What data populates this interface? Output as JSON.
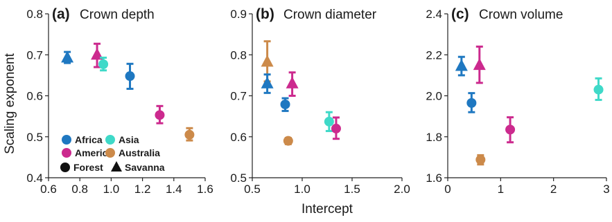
{
  "figure": {
    "ylabel": "Scaling exponent",
    "xlabel": "Intercept"
  },
  "legend": {
    "items": [
      {
        "label": "Africa",
        "color": "#1f78c1",
        "shape": "circle"
      },
      {
        "label": "Asia",
        "color": "#3fd9c8",
        "shape": "circle"
      },
      {
        "label": "America",
        "color": "#cc2a8e",
        "shape": "circle"
      },
      {
        "label": "Australia",
        "color": "#cc8a4a",
        "shape": "circle"
      },
      {
        "label": "Forest",
        "color": "#111111",
        "shape": "circle"
      },
      {
        "label": "Savanna",
        "color": "#111111",
        "shape": "triangle"
      }
    ]
  },
  "chart_data": [
    {
      "type": "scatter",
      "panel": "(a)",
      "title": "Crown depth",
      "xlim": [
        0.6,
        1.6
      ],
      "ylim": [
        0.4,
        0.8
      ],
      "xticks": [
        "0.6",
        "0.8",
        "1.0",
        "1.2",
        "1.4",
        "1.6"
      ],
      "yticks": [
        "0.4",
        "0.5",
        "0.6",
        "0.7",
        "0.8"
      ],
      "points": [
        {
          "region": "Africa",
          "biome": "Savanna",
          "x": 0.72,
          "y": 0.693,
          "lo": 0.68,
          "hi": 0.707
        },
        {
          "region": "America",
          "biome": "Savanna",
          "x": 0.91,
          "y": 0.7,
          "lo": 0.67,
          "hi": 0.727
        },
        {
          "region": "Asia",
          "biome": "Forest",
          "x": 0.95,
          "y": 0.677,
          "lo": 0.662,
          "hi": 0.693
        },
        {
          "region": "Africa",
          "biome": "Forest",
          "x": 1.12,
          "y": 0.648,
          "lo": 0.617,
          "hi": 0.678
        },
        {
          "region": "America",
          "biome": "Forest",
          "x": 1.31,
          "y": 0.553,
          "lo": 0.533,
          "hi": 0.575
        },
        {
          "region": "Australia",
          "biome": "Forest",
          "x": 1.5,
          "y": 0.505,
          "lo": 0.491,
          "hi": 0.521
        }
      ]
    },
    {
      "type": "scatter",
      "panel": "(b)",
      "title": "Crown diameter",
      "xlim": [
        0.5,
        2.0
      ],
      "ylim": [
        0.5,
        0.9
      ],
      "xticks": [
        "0.5",
        "1.0",
        "1.5",
        "2.0"
      ],
      "yticks": [
        "0.5",
        "0.6",
        "0.7",
        "0.8",
        "0.9"
      ],
      "points": [
        {
          "region": "Australia",
          "biome": "Savanna",
          "x": 0.65,
          "y": 0.783,
          "lo": 0.735,
          "hi": 0.833
        },
        {
          "region": "Africa",
          "biome": "Savanna",
          "x": 0.65,
          "y": 0.73,
          "lo": 0.707,
          "hi": 0.752
        },
        {
          "region": "America",
          "biome": "Savanna",
          "x": 0.9,
          "y": 0.73,
          "lo": 0.7,
          "hi": 0.757
        },
        {
          "region": "Africa",
          "biome": "Forest",
          "x": 0.83,
          "y": 0.679,
          "lo": 0.663,
          "hi": 0.694
        },
        {
          "region": "Australia",
          "biome": "Forest",
          "x": 0.86,
          "y": 0.59,
          "lo": 0.582,
          "hi": 0.597
        },
        {
          "region": "Asia",
          "biome": "Forest",
          "x": 1.27,
          "y": 0.637,
          "lo": 0.614,
          "hi": 0.66
        },
        {
          "region": "America",
          "biome": "Forest",
          "x": 1.34,
          "y": 0.62,
          "lo": 0.595,
          "hi": 0.647
        }
      ]
    },
    {
      "type": "scatter",
      "panel": "(c)",
      "title": "Crown volume",
      "xlim": [
        0,
        3.0
      ],
      "ylim": [
        1.6,
        2.4
      ],
      "xticks": [
        "0",
        "1",
        "2",
        "3"
      ],
      "yticks": [
        "1.6",
        "1.8",
        "2.0",
        "2.2",
        "2.4"
      ],
      "points": [
        {
          "region": "Africa",
          "biome": "Savanna",
          "x": 0.26,
          "y": 2.145,
          "lo": 2.1,
          "hi": 2.19
        },
        {
          "region": "America",
          "biome": "Savanna",
          "x": 0.6,
          "y": 2.15,
          "lo": 2.063,
          "hi": 2.24
        },
        {
          "region": "Africa",
          "biome": "Forest",
          "x": 0.45,
          "y": 1.965,
          "lo": 1.92,
          "hi": 2.013
        },
        {
          "region": "Australia",
          "biome": "Forest",
          "x": 0.62,
          "y": 1.688,
          "lo": 1.665,
          "hi": 1.71
        },
        {
          "region": "America",
          "biome": "Forest",
          "x": 1.18,
          "y": 1.835,
          "lo": 1.773,
          "hi": 1.895
        },
        {
          "region": "Asia",
          "biome": "Forest",
          "x": 2.85,
          "y": 2.03,
          "lo": 1.98,
          "hi": 2.085
        }
      ]
    }
  ]
}
